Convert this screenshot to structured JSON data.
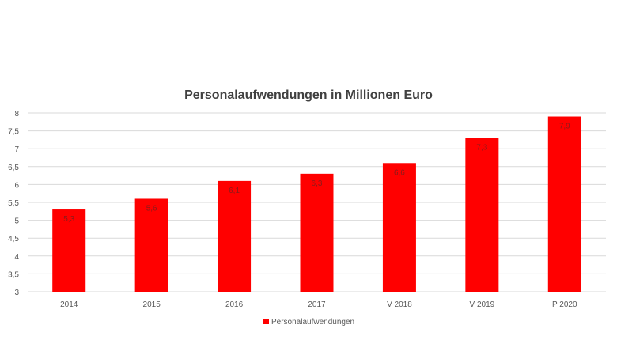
{
  "chart_data": {
    "type": "bar",
    "title": "Personalaufwendungen in Millionen Euro",
    "categories": [
      "2014",
      "2015",
      "2016",
      "2017",
      "V 2018",
      "V 2019",
      "P 2020"
    ],
    "series": [
      {
        "name": "Personalaufwendungen",
        "values": [
          5.3,
          5.6,
          6.1,
          6.3,
          6.6,
          7.3,
          7.9
        ],
        "labels": [
          "5,3",
          "5,6",
          "6,1",
          "6,3",
          "6,6",
          "7,3",
          "7,9"
        ],
        "color": "#ff0000"
      }
    ],
    "ylim": [
      3,
      8
    ],
    "yticks": [
      3,
      3.5,
      4,
      4.5,
      5,
      5.5,
      6,
      6.5,
      7,
      7.5,
      8
    ],
    "ytick_labels": [
      "3",
      "3,5",
      "4",
      "4,5",
      "5",
      "5,5",
      "6",
      "6,5",
      "7",
      "7,5",
      "8"
    ],
    "grid": true,
    "legend_position": "bottom",
    "xlabel": "",
    "ylabel": ""
  }
}
